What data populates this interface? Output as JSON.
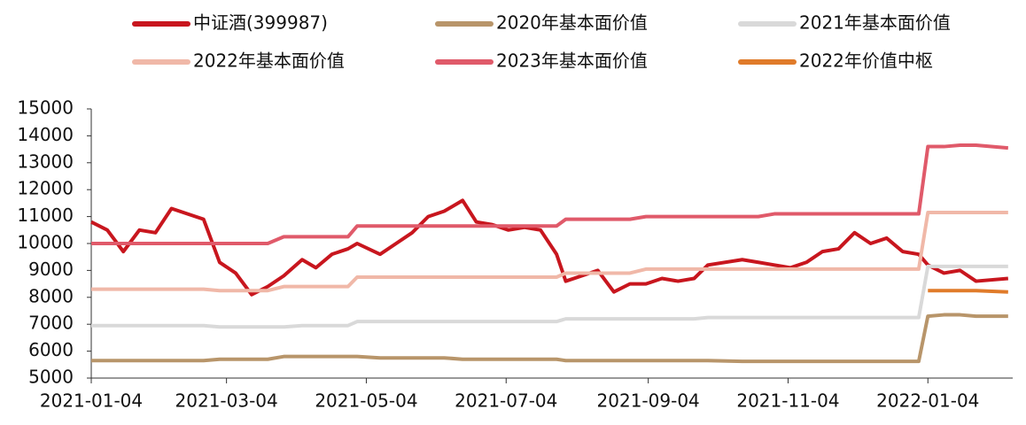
{
  "chart_data": {
    "type": "line",
    "x": [
      "2021-01-04",
      "2021-01-11",
      "2021-01-18",
      "2021-01-25",
      "2021-02-01",
      "2021-02-08",
      "2021-02-22",
      "2021-03-01",
      "2021-03-08",
      "2021-03-15",
      "2021-03-22",
      "2021-03-29",
      "2021-04-06",
      "2021-04-12",
      "2021-04-19",
      "2021-04-26",
      "2021-04-30",
      "2021-05-10",
      "2021-05-17",
      "2021-05-24",
      "2021-05-31",
      "2021-06-07",
      "2021-06-15",
      "2021-06-21",
      "2021-06-28",
      "2021-07-05",
      "2021-07-12",
      "2021-07-19",
      "2021-07-26",
      "2021-07-30",
      "2021-08-06",
      "2021-08-13",
      "2021-08-20",
      "2021-08-27",
      "2021-09-03",
      "2021-09-10",
      "2021-09-17",
      "2021-09-24",
      "2021-09-30",
      "2021-10-15",
      "2021-10-22",
      "2021-10-29",
      "2021-11-05",
      "2021-11-12",
      "2021-11-19",
      "2021-11-26",
      "2021-12-03",
      "2021-12-10",
      "2021-12-17",
      "2021-12-24",
      "2021-12-31",
      "2022-01-04",
      "2022-01-11",
      "2022-01-18",
      "2022-01-25",
      "2022-02-08"
    ],
    "series": [
      {
        "name": "中证酒(399987)",
        "color": "#c8161e",
        "values": [
          10800,
          10500,
          9700,
          10500,
          10400,
          11300,
          10900,
          9300,
          8900,
          8100,
          8400,
          8800,
          9400,
          9100,
          9600,
          9800,
          10000,
          9600,
          10000,
          10400,
          11000,
          11200,
          11600,
          10800,
          10700,
          10500,
          10600,
          10500,
          9600,
          8600,
          8800,
          9000,
          8200,
          8500,
          8500,
          8700,
          8600,
          8700,
          9200,
          9400,
          9300,
          9200,
          9100,
          9300,
          9700,
          9800,
          10400,
          10000,
          10200,
          9700,
          9600,
          9200,
          8900,
          9000,
          8600,
          8700
        ]
      },
      {
        "name": "2020年基本面价值",
        "color": "#b8956a",
        "values": [
          5650,
          5650,
          5650,
          5650,
          5650,
          5650,
          5650,
          5700,
          5700,
          5700,
          5700,
          5800,
          5800,
          5800,
          5800,
          5800,
          5800,
          5750,
          5750,
          5750,
          5750,
          5750,
          5700,
          5700,
          5700,
          5700,
          5700,
          5700,
          5700,
          5650,
          5650,
          5650,
          5650,
          5650,
          5650,
          5650,
          5650,
          5650,
          5650,
          5620,
          5620,
          5620,
          5620,
          5620,
          5620,
          5620,
          5620,
          5620,
          5620,
          5620,
          5620,
          7300,
          7350,
          7350,
          7300,
          7300
        ]
      },
      {
        "name": "2021年基本面价值",
        "color": "#d9d9d9",
        "values": [
          6950,
          6950,
          6950,
          6950,
          6950,
          6950,
          6950,
          6900,
          6900,
          6900,
          6900,
          6900,
          6950,
          6950,
          6950,
          6950,
          7100,
          7100,
          7100,
          7100,
          7100,
          7100,
          7100,
          7100,
          7100,
          7100,
          7100,
          7100,
          7100,
          7200,
          7200,
          7200,
          7200,
          7200,
          7200,
          7200,
          7200,
          7200,
          7250,
          7250,
          7250,
          7250,
          7250,
          7250,
          7250,
          7250,
          7250,
          7250,
          7250,
          7250,
          7250,
          9150,
          9150,
          9150,
          9150,
          9150
        ]
      },
      {
        "name": "2022年基本面价值",
        "color": "#f0b8a8",
        "values": [
          8300,
          8300,
          8300,
          8300,
          8300,
          8300,
          8300,
          8250,
          8250,
          8250,
          8250,
          8400,
          8400,
          8400,
          8400,
          8400,
          8750,
          8750,
          8750,
          8750,
          8750,
          8750,
          8750,
          8750,
          8750,
          8750,
          8750,
          8750,
          8750,
          8900,
          8900,
          8900,
          8900,
          8900,
          9050,
          9050,
          9050,
          9050,
          9050,
          9050,
          9050,
          9050,
          9050,
          9050,
          9050,
          9050,
          9050,
          9050,
          9050,
          9050,
          9050,
          11150,
          11150,
          11150,
          11150,
          11150
        ]
      },
      {
        "name": "2023年基本面价值",
        "color": "#e05a6a",
        "values": [
          10000,
          10000,
          10000,
          10000,
          10000,
          10000,
          10000,
          10000,
          10000,
          10000,
          10000,
          10250,
          10250,
          10250,
          10250,
          10250,
          10650,
          10650,
          10650,
          10650,
          10650,
          10650,
          10650,
          10650,
          10650,
          10650,
          10650,
          10650,
          10650,
          10900,
          10900,
          10900,
          10900,
          10900,
          11000,
          11000,
          11000,
          11000,
          11000,
          11000,
          11000,
          11100,
          11100,
          11100,
          11100,
          11100,
          11100,
          11100,
          11100,
          11100,
          11100,
          13600,
          13600,
          13650,
          13650,
          13550
        ]
      },
      {
        "name": "2022年价值中枢",
        "color": "#e07b2a",
        "values": [
          null,
          null,
          null,
          null,
          null,
          null,
          null,
          null,
          null,
          null,
          null,
          null,
          null,
          null,
          null,
          null,
          null,
          null,
          null,
          null,
          null,
          null,
          null,
          null,
          null,
          null,
          null,
          null,
          null,
          null,
          null,
          null,
          null,
          null,
          null,
          null,
          null,
          null,
          null,
          null,
          null,
          null,
          null,
          null,
          null,
          null,
          null,
          null,
          null,
          null,
          null,
          8250,
          8250,
          8250,
          8250,
          8200
        ]
      }
    ],
    "xlim": [
      "2021-01-04",
      "2022-02-10"
    ],
    "xticks": [
      "2021-01-04",
      "2021-03-04",
      "2021-05-04",
      "2021-07-04",
      "2021-09-04",
      "2021-11-04",
      "2022-01-04"
    ],
    "ylim": [
      5000,
      15000
    ],
    "yticks": [
      5000,
      6000,
      7000,
      8000,
      9000,
      10000,
      11000,
      12000,
      13000,
      14000,
      15000
    ],
    "grid": false,
    "legend": "top"
  }
}
